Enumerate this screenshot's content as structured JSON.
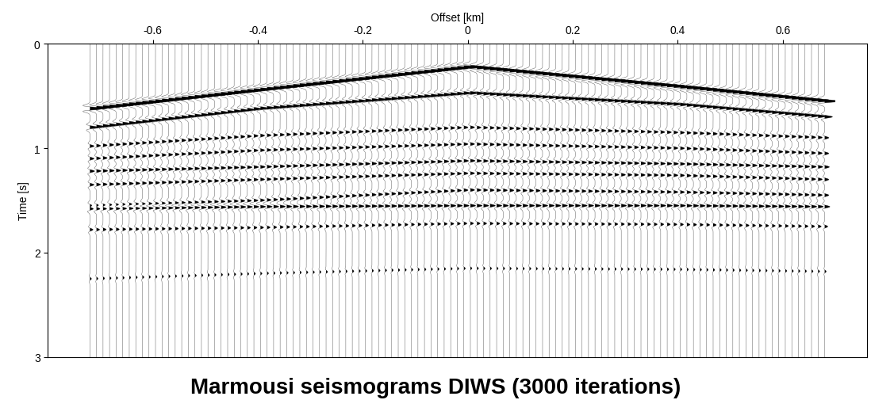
{
  "chart_data": {
    "type": "seismogram",
    "title": "Marmousi seismograms DIWS (3000 iterations)",
    "x_label": "Offset [km]",
    "y_label": "Time [s]",
    "xlim": [
      -0.8,
      0.76
    ],
    "xticks": [
      -0.6,
      -0.4,
      -0.2,
      0,
      0.2,
      0.4,
      0.6
    ],
    "ylim": [
      3,
      0
    ],
    "yticks": [
      0,
      1,
      2,
      3
    ],
    "color": "#000000",
    "traces": {
      "first_offset": -0.72,
      "last_offset": 0.68,
      "count": 113
    },
    "events": [
      {
        "x": [
          -0.72,
          -0.4,
          0,
          0.4,
          0.68
        ],
        "t": [
          0.62,
          0.44,
          0.22,
          0.41,
          0.55
        ],
        "amplitude": 3.0
      },
      {
        "x": [
          -0.72,
          -0.4,
          0,
          0.4,
          0.68
        ],
        "t": [
          0.8,
          0.62,
          0.47,
          0.58,
          0.7
        ],
        "amplitude": 1.5
      },
      {
        "x": [
          -0.72,
          -0.4,
          0,
          0.4,
          0.68
        ],
        "t": [
          0.98,
          0.88,
          0.8,
          0.85,
          0.9
        ],
        "amplitude": 0.8
      },
      {
        "x": [
          -0.72,
          -0.4,
          0,
          0.4,
          0.68
        ],
        "t": [
          1.1,
          1.02,
          0.96,
          1.0,
          1.05
        ],
        "amplitude": 0.8
      },
      {
        "x": [
          -0.72,
          -0.4,
          0,
          0.4,
          0.68
        ],
        "t": [
          1.22,
          1.18,
          1.12,
          1.15,
          1.18
        ],
        "amplitude": 0.9
      },
      {
        "x": [
          -0.72,
          -0.4,
          0,
          0.4,
          0.68
        ],
        "t": [
          1.35,
          1.3,
          1.24,
          1.26,
          1.3
        ],
        "amplitude": 0.8
      },
      {
        "x": [
          -0.72,
          -0.4,
          0,
          0.4,
          0.68
        ],
        "t": [
          1.55,
          1.5,
          1.4,
          1.42,
          1.45
        ],
        "amplitude": 0.8
      },
      {
        "x": [
          -0.72,
          -0.4,
          0,
          0.4,
          0.68
        ],
        "t": [
          1.58,
          1.56,
          1.55,
          1.55,
          1.56
        ],
        "amplitude": 1.0
      },
      {
        "x": [
          -0.72,
          -0.4,
          0,
          0.4,
          0.68
        ],
        "t": [
          1.78,
          1.76,
          1.72,
          1.73,
          1.75
        ],
        "amplitude": 0.6
      },
      {
        "x": [
          -0.72,
          -0.4,
          0,
          0.4,
          0.68
        ],
        "t": [
          2.25,
          2.2,
          2.15,
          2.16,
          2.18
        ],
        "amplitude": 0.3
      }
    ]
  }
}
